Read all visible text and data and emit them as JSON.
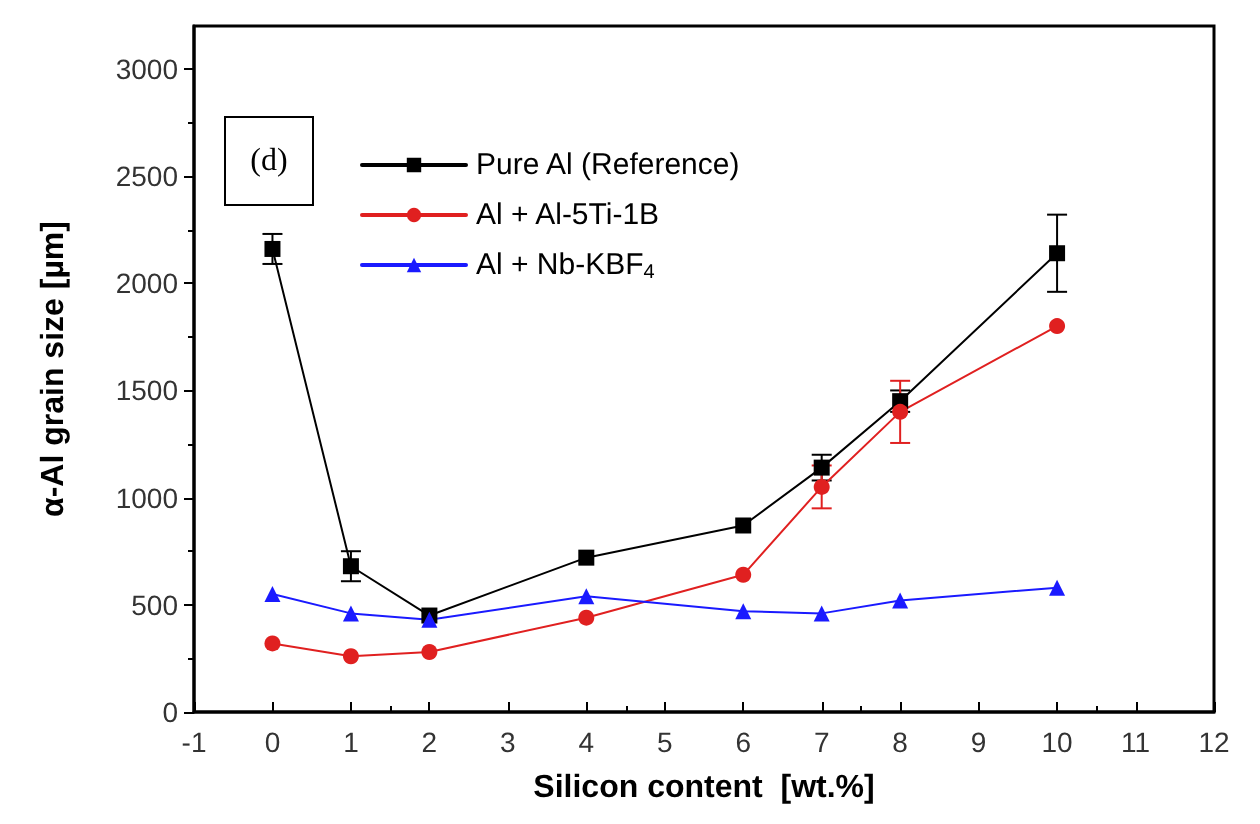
{
  "chart_data": {
    "type": "line",
    "xlabel": "Silicon content  [wt.%]",
    "ylabel": "α-Al grain size [µm]",
    "annotations": [
      "(d)"
    ],
    "x": [
      0,
      1,
      2,
      4,
      6,
      7,
      8,
      10
    ],
    "xlim": [
      -1,
      12
    ],
    "xticks": [
      -1,
      0,
      1,
      2,
      3,
      4,
      5,
      6,
      7,
      8,
      9,
      10,
      11,
      12
    ],
    "ylim": [
      0,
      3200
    ],
    "yticks": [
      0,
      500,
      1000,
      1500,
      2000,
      2500,
      3000
    ],
    "grid": false,
    "legend": "top left",
    "line_style": "solid",
    "series": [
      {
        "name": "Pure Al (Reference)",
        "color": "#000000",
        "marker": "square",
        "values": [
          2160,
          680,
          450,
          720,
          870,
          1140,
          1450,
          2140
        ],
        "errors": [
          70,
          70,
          null,
          null,
          null,
          60,
          50,
          180
        ]
      },
      {
        "name": "Al + Al-5Ti-1B",
        "color": "#e02020",
        "marker": "circle",
        "values": [
          320,
          260,
          280,
          440,
          640,
          1050,
          1400,
          1800
        ],
        "errors": [
          null,
          null,
          null,
          null,
          null,
          100,
          145,
          null
        ]
      },
      {
        "name": "Al + Nb-KBF$_{4}$",
        "color": "#1a1aff",
        "marker": "triangle",
        "values": [
          550,
          460,
          430,
          540,
          470,
          460,
          520,
          580
        ],
        "errors": [
          null,
          null,
          null,
          null,
          null,
          null,
          null,
          null
        ]
      }
    ]
  }
}
